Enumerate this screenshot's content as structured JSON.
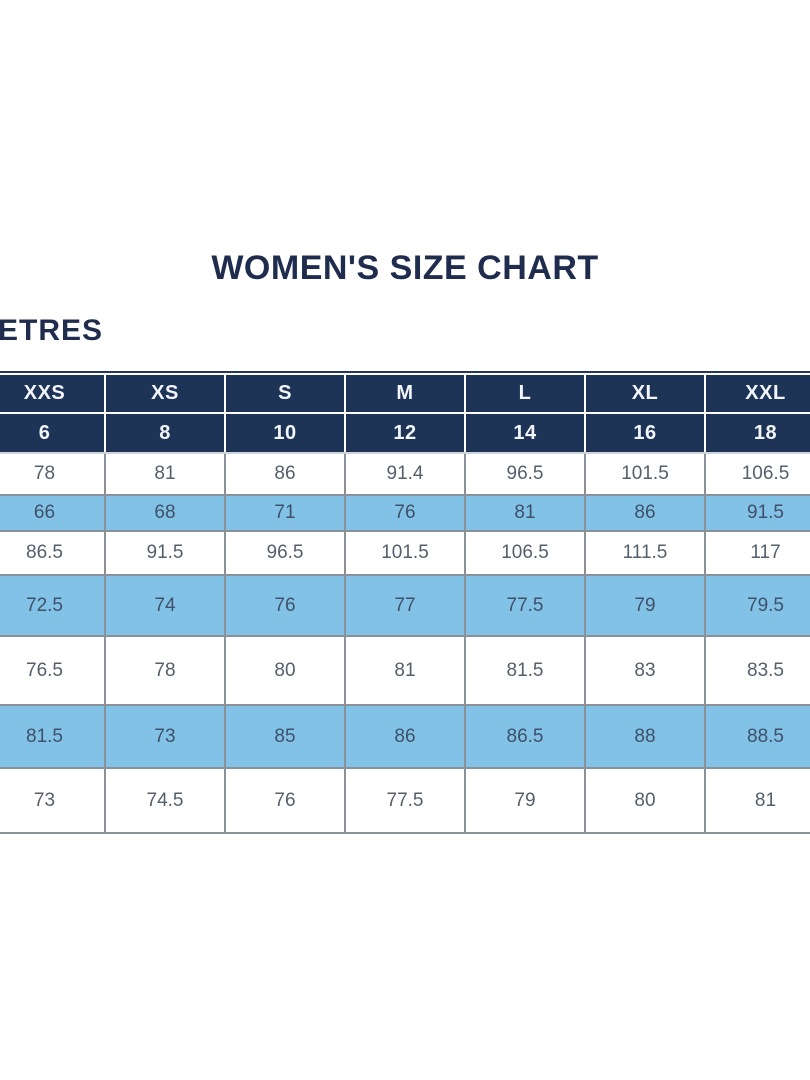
{
  "page": {
    "title": "WOMEN'S SIZE CHART",
    "unit_label": "ETRES"
  },
  "chart_data": {
    "type": "table",
    "title": "WOMEN'S SIZE CHART",
    "columns": [
      "XXS",
      "XS",
      "S",
      "M",
      "L",
      "XL",
      "XXL"
    ],
    "numeric_sizes": [
      "6",
      "8",
      "10",
      "12",
      "14",
      "16",
      "18"
    ],
    "rows": [
      [
        "78",
        "81",
        "86",
        "91.4",
        "96.5",
        "101.5",
        "106.5"
      ],
      [
        "66",
        "68",
        "71",
        "76",
        "81",
        "86",
        "91.5"
      ],
      [
        "86.5",
        "91.5",
        "96.5",
        "101.5",
        "106.5",
        "111.5",
        "117"
      ],
      [
        "72.5",
        "74",
        "76",
        "77",
        "77.5",
        "79",
        "79.5"
      ],
      [
        "76.5",
        "78",
        "80",
        "81",
        "81.5",
        "83",
        "83.5"
      ],
      [
        "81.5",
        "73",
        "85",
        "86",
        "86.5",
        "88",
        "88.5"
      ],
      [
        "73",
        "74.5",
        "76",
        "77.5",
        "79",
        "80",
        "81"
      ]
    ],
    "layout_hints": {
      "alternating_row_colors": "white / light-blue starting with white",
      "cropped_edges": "table cut off at left and right image edges",
      "header_rows": 2
    }
  },
  "colors": {
    "title_color": "#1f2c4d",
    "header_bg": "#1e3456",
    "header_text": "#f2f5f9",
    "header_divider": "#ffffff",
    "header_bottom_line": "#ccd3da",
    "row_bg": "#ffffff",
    "alt_row_bg": "#82c2e7",
    "body_text": "#555f6b",
    "alt_text": "#3f5168",
    "grid_line": "#8b9198",
    "top_border": "#24395c"
  }
}
